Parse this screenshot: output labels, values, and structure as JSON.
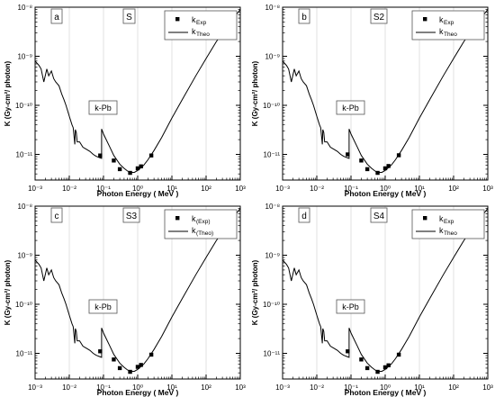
{
  "chart_data": [
    {
      "type": "line",
      "panel_letter": "a",
      "panel_title": "S",
      "xlabel": "Photon Energy  ( MeV )",
      "ylabel": "K (Gy-cm²/ photon)",
      "xscale": "log",
      "yscale": "log",
      "xlim": [
        0.001,
        1000
      ],
      "ylim": [
        3e-12,
        1e-08
      ],
      "x_ticks": [
        "10⁻³",
        "10⁻²",
        "10⁻¹",
        "10⁰",
        "10¹",
        "10²",
        "10³"
      ],
      "y_ticks": [
        "10⁻¹¹",
        "10⁻¹⁰",
        "10⁻⁹",
        "10⁻⁸"
      ],
      "grid": "vertical",
      "legend_position": "top-right",
      "annotation": "k-Pb",
      "series": [
        {
          "name": "kExp",
          "legend_main": "k",
          "legend_sub": "Exp",
          "style": "markers",
          "x": [
            0.08,
            0.2,
            0.3,
            0.6,
            1.0,
            1.25,
            2.5
          ],
          "y": [
            9.5e-12,
            7.5e-12,
            5e-12,
            4.2e-12,
            5.2e-12,
            5.7e-12,
            9.5e-12
          ]
        },
        {
          "name": "kTheo",
          "legend_main": "k",
          "legend_sub": "Theo",
          "style": "line",
          "x": [
            0.001,
            0.0013,
            0.0015,
            0.0018,
            0.0022,
            0.0025,
            0.003,
            0.0035,
            0.004,
            0.005,
            0.006,
            0.007,
            0.008,
            0.01,
            0.012,
            0.013,
            0.0145,
            0.015,
            0.016,
            0.017,
            0.02,
            0.025,
            0.03,
            0.04,
            0.05,
            0.06,
            0.07,
            0.08,
            0.088,
            0.088,
            0.1,
            0.15,
            0.2,
            0.3,
            0.4,
            0.5,
            0.6,
            0.8,
            1,
            1.5,
            2,
            3,
            5,
            10,
            20,
            50,
            100,
            200,
            500,
            1000
          ],
          "y": [
            8e-10,
            6.5e-10,
            5.5e-10,
            3e-10,
            5.5e-10,
            4e-10,
            5e-10,
            3.5e-10,
            3e-10,
            2.5e-10,
            1.7e-10,
            1.3e-10,
            1e-10,
            6e-11,
            4e-11,
            3.5e-11,
            1.6e-11,
            3.2e-11,
            2.8e-11,
            1.8e-11,
            1.8e-11,
            1.4e-11,
            1.3e-11,
            1.15e-11,
            1e-11,
            9.2e-12,
            8.8e-12,
            8.5e-12,
            8.3e-12,
            3.3e-11,
            2.6e-11,
            1.45e-11,
            9.5e-12,
            6.3e-12,
            5.2e-12,
            4.6e-12,
            4.3e-12,
            4.3e-12,
            4.7e-12,
            6e-12,
            7.8e-12,
            1.2e-11,
            2.2e-11,
            5.5e-11,
            1.3e-10,
            4e-10,
            9e-10,
            2e-09,
            4.8e-09,
            9e-09
          ]
        }
      ]
    },
    {
      "type": "line",
      "panel_letter": "b",
      "panel_title": "S2",
      "xlabel": "Photon Energy  ( MeV )",
      "ylabel": "K (Gy-cm²/ photon)",
      "xscale": "log",
      "yscale": "log",
      "xlim": [
        0.001,
        1000
      ],
      "ylim": [
        3e-12,
        1e-08
      ],
      "x_ticks": [
        "10⁻³",
        "10⁻²",
        "10⁻¹",
        "10⁰",
        "10¹",
        "10²",
        "10³"
      ],
      "y_ticks": [
        "10⁻¹¹",
        "10⁻¹⁰",
        "10⁻⁹",
        "10⁻⁸"
      ],
      "grid": "vertical",
      "legend_position": "top-right",
      "annotation": "k-Pb",
      "series": [
        {
          "name": "kExp",
          "legend_main": "k",
          "legend_sub": "Exp",
          "style": "markers",
          "x": [
            0.08,
            0.2,
            0.3,
            0.6,
            1.0,
            1.25,
            2.5
          ],
          "y": [
            1e-11,
            7.5e-12,
            5e-12,
            4.2e-12,
            5.2e-12,
            5.8e-12,
            9.6e-12
          ]
        },
        {
          "name": "kTheo",
          "legend_main": "k",
          "legend_sub": "Theo",
          "style": "line",
          "x": [
            0.001,
            0.0013,
            0.0015,
            0.0018,
            0.0022,
            0.0025,
            0.003,
            0.0035,
            0.004,
            0.005,
            0.006,
            0.007,
            0.008,
            0.01,
            0.012,
            0.013,
            0.0145,
            0.015,
            0.016,
            0.017,
            0.02,
            0.025,
            0.03,
            0.04,
            0.05,
            0.06,
            0.07,
            0.08,
            0.088,
            0.088,
            0.1,
            0.15,
            0.2,
            0.3,
            0.4,
            0.5,
            0.6,
            0.8,
            1,
            1.5,
            2,
            3,
            5,
            10,
            20,
            50,
            100,
            200,
            500,
            1000
          ],
          "y": [
            8e-10,
            6.5e-10,
            5.5e-10,
            3e-10,
            5.5e-10,
            4e-10,
            5e-10,
            3.5e-10,
            3e-10,
            2.5e-10,
            1.7e-10,
            1.3e-10,
            1e-10,
            6e-11,
            4e-11,
            3.5e-11,
            1.6e-11,
            3.2e-11,
            2.8e-11,
            1.8e-11,
            1.8e-11,
            1.4e-11,
            1.3e-11,
            1.15e-11,
            1e-11,
            9.2e-12,
            8.8e-12,
            8.5e-12,
            8.3e-12,
            3.3e-11,
            2.6e-11,
            1.45e-11,
            9.5e-12,
            6.3e-12,
            5.2e-12,
            4.6e-12,
            4.3e-12,
            4.3e-12,
            4.7e-12,
            6e-12,
            7.8e-12,
            1.2e-11,
            2.2e-11,
            5.5e-11,
            1.3e-10,
            4e-10,
            9e-10,
            2e-09,
            4.8e-09,
            9e-09
          ]
        }
      ]
    },
    {
      "type": "line",
      "panel_letter": "c",
      "panel_title": "S3",
      "xlabel": "Photon Energy  ( MeV )",
      "ylabel": "K (Gy-cm²/ photon)",
      "xscale": "log",
      "yscale": "log",
      "xlim": [
        0.001,
        1000
      ],
      "ylim": [
        3e-12,
        1e-08
      ],
      "x_ticks": [
        "10⁻³",
        "10⁻²",
        "10⁻¹",
        "10⁰",
        "10¹",
        "10²",
        "10³"
      ],
      "y_ticks": [
        "10⁻¹¹",
        "10⁻¹⁰",
        "10⁻⁹",
        "10⁻⁸"
      ],
      "grid": "vertical",
      "legend_position": "top-right",
      "annotation": "k-Pb",
      "series": [
        {
          "name": "k(Exp)",
          "legend_main": "k",
          "legend_sub": "(Exp)",
          "style": "markers",
          "x": [
            0.08,
            0.2,
            0.3,
            0.6,
            1.0,
            1.25,
            2.5
          ],
          "y": [
            1.1e-11,
            7.5e-12,
            5e-12,
            4.2e-12,
            5.3e-12,
            5.8e-12,
            9.4e-12
          ]
        },
        {
          "name": "k(Theo)",
          "legend_main": "k",
          "legend_sub": "(Theo)",
          "style": "line",
          "x": [
            0.001,
            0.0013,
            0.0015,
            0.0018,
            0.0022,
            0.0025,
            0.003,
            0.0035,
            0.004,
            0.005,
            0.006,
            0.007,
            0.008,
            0.01,
            0.012,
            0.013,
            0.0145,
            0.015,
            0.016,
            0.017,
            0.02,
            0.025,
            0.03,
            0.04,
            0.05,
            0.06,
            0.07,
            0.08,
            0.088,
            0.088,
            0.1,
            0.15,
            0.2,
            0.3,
            0.4,
            0.5,
            0.6,
            0.8,
            1,
            1.5,
            2,
            3,
            5,
            10,
            20,
            50,
            100,
            200,
            500,
            1000
          ],
          "y": [
            8e-10,
            6.5e-10,
            5.5e-10,
            3e-10,
            5.5e-10,
            4e-10,
            5e-10,
            3.5e-10,
            3e-10,
            2.5e-10,
            1.7e-10,
            1.3e-10,
            1e-10,
            6e-11,
            4e-11,
            3.5e-11,
            1.6e-11,
            3.2e-11,
            2.8e-11,
            1.8e-11,
            1.8e-11,
            1.4e-11,
            1.3e-11,
            1.15e-11,
            1e-11,
            9.2e-12,
            8.8e-12,
            8.5e-12,
            8.3e-12,
            3.3e-11,
            2.6e-11,
            1.45e-11,
            9.5e-12,
            6.3e-12,
            5.2e-12,
            4.6e-12,
            4.3e-12,
            4.3e-12,
            4.7e-12,
            6e-12,
            7.8e-12,
            1.2e-11,
            2.2e-11,
            5.5e-11,
            1.3e-10,
            4e-10,
            9e-10,
            2e-09,
            4.8e-09,
            9e-09
          ]
        }
      ]
    },
    {
      "type": "line",
      "panel_letter": "d",
      "panel_title": "S4",
      "xlabel": "Photon Energy  ( MeV )",
      "ylabel": "K (Gy-cm²/ photon)",
      "xscale": "log",
      "yscale": "log",
      "xlim": [
        0.001,
        1000
      ],
      "ylim": [
        3e-12,
        1e-08
      ],
      "x_ticks": [
        "10⁻³",
        "10⁻²",
        "10⁻¹",
        "10⁰",
        "10¹",
        "10²",
        "10³"
      ],
      "y_ticks": [
        "10⁻¹¹",
        "10⁻¹⁰",
        "10⁻⁹",
        "10⁻⁸"
      ],
      "grid": "vertical",
      "legend_position": "top-right",
      "annotation": "k-Pb",
      "series": [
        {
          "name": "kExp",
          "legend_main": "k",
          "legend_sub": "Exp",
          "style": "markers",
          "x": [
            0.08,
            0.2,
            0.3,
            0.6,
            1.0,
            1.25,
            2.5
          ],
          "y": [
            1.1e-11,
            7.5e-12,
            5e-12,
            4.2e-12,
            5.2e-12,
            5.7e-12,
            9.4e-12
          ]
        },
        {
          "name": "kTheo",
          "legend_main": "k",
          "legend_sub": "Theo",
          "style": "line",
          "x": [
            0.001,
            0.0013,
            0.0015,
            0.0018,
            0.0022,
            0.0025,
            0.003,
            0.0035,
            0.004,
            0.005,
            0.006,
            0.007,
            0.008,
            0.01,
            0.012,
            0.013,
            0.0145,
            0.015,
            0.016,
            0.017,
            0.02,
            0.025,
            0.03,
            0.04,
            0.05,
            0.06,
            0.07,
            0.08,
            0.088,
            0.088,
            0.1,
            0.15,
            0.2,
            0.3,
            0.4,
            0.5,
            0.6,
            0.8,
            1,
            1.5,
            2,
            3,
            5,
            10,
            20,
            50,
            100,
            200,
            500,
            1000
          ],
          "y": [
            8e-10,
            6.5e-10,
            5.5e-10,
            3e-10,
            5.5e-10,
            4e-10,
            5e-10,
            3.5e-10,
            3e-10,
            2.5e-10,
            1.7e-10,
            1.3e-10,
            1e-10,
            6e-11,
            4e-11,
            3.5e-11,
            1.6e-11,
            3.2e-11,
            2.8e-11,
            1.8e-11,
            1.8e-11,
            1.4e-11,
            1.3e-11,
            1.15e-11,
            1e-11,
            9.2e-12,
            8.8e-12,
            8.5e-12,
            8.3e-12,
            3.3e-11,
            2.6e-11,
            1.45e-11,
            9.5e-12,
            6.3e-12,
            5.2e-12,
            4.6e-12,
            4.3e-12,
            4.3e-12,
            4.7e-12,
            6e-12,
            7.8e-12,
            1.2e-11,
            2.2e-11,
            5.5e-11,
            1.3e-10,
            4e-10,
            9e-10,
            2e-09,
            4.8e-09,
            9e-09
          ]
        }
      ]
    }
  ]
}
